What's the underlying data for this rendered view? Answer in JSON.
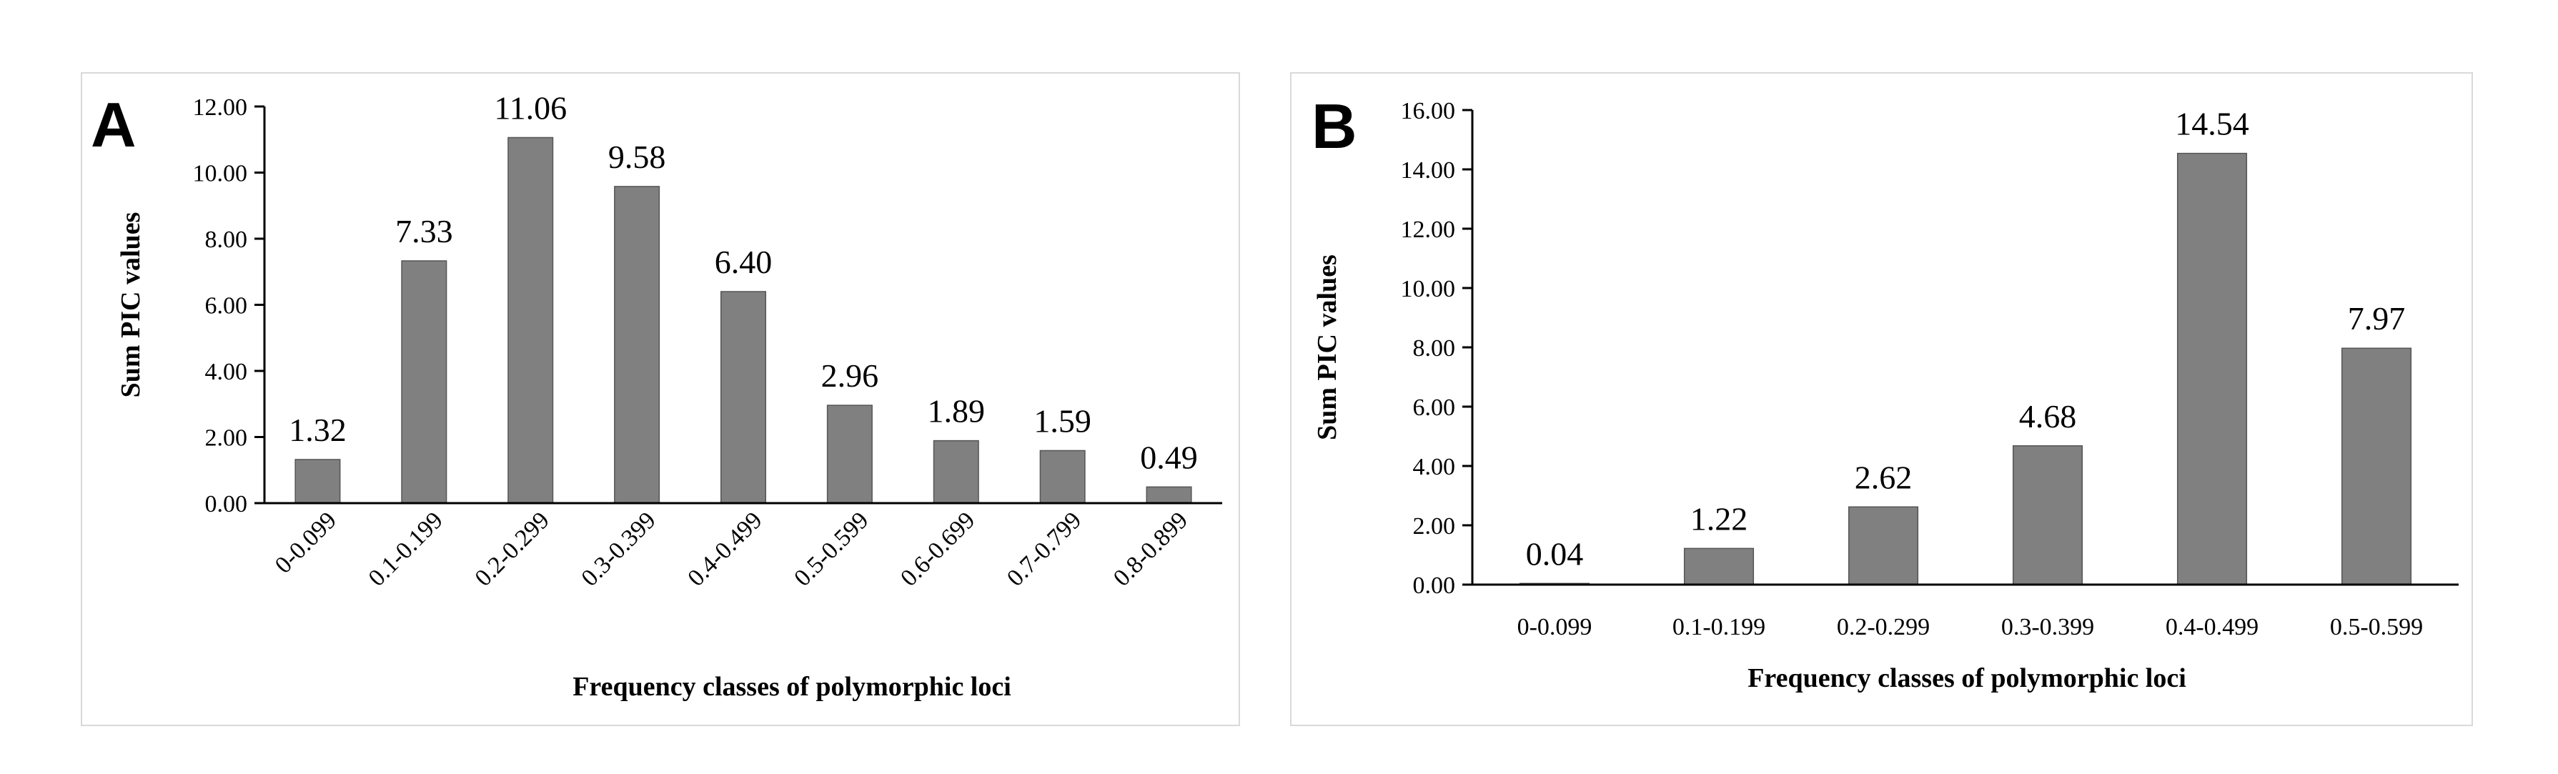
{
  "chart_data": [
    {
      "panel_label": "A",
      "type": "bar",
      "categories": [
        "0-0.099",
        "0.1-0.199",
        "0.2-0.299",
        "0.3-0.399",
        "0.4-0.499",
        "0.5-0.599",
        "0.6-0.699",
        "0.7-0.799",
        "0.8-0.899"
      ],
      "values": [
        1.32,
        7.33,
        11.06,
        9.58,
        6.4,
        2.96,
        1.89,
        1.59,
        0.49
      ],
      "value_labels": [
        "1.32",
        "7.33",
        "11.06",
        "9.58",
        "6.40",
        "2.96",
        "1.89",
        "1.59",
        "0.49"
      ],
      "xlabel": "Frequency classes of polymorphic loci",
      "ylabel": "Sum PIC values",
      "ylim": [
        0,
        12
      ],
      "ytick_labels": [
        "0.00",
        "2.00",
        "4.00",
        "6.00",
        "8.00",
        "10.00",
        "12.00"
      ],
      "x_tick_rotation": "rotated",
      "grid": false,
      "legend": "none",
      "bar_color": "#808080"
    },
    {
      "panel_label": "B",
      "type": "bar",
      "categories": [
        "0-0.099",
        "0.1-0.199",
        "0.2-0.299",
        "0.3-0.399",
        "0.4-0.499",
        "0.5-0.599"
      ],
      "values": [
        0.04,
        1.22,
        2.62,
        4.68,
        14.54,
        7.97
      ],
      "value_labels": [
        "0.04",
        "1.22",
        "2.62",
        "4.68",
        "14.54",
        "7.97"
      ],
      "xlabel": "Frequency classes of polymorphic loci",
      "ylabel": "Sum PIC values",
      "ylim": [
        0,
        16
      ],
      "ytick_labels": [
        "0.00",
        "2.00",
        "4.00",
        "6.00",
        "8.00",
        "10.00",
        "12.00",
        "14.00",
        "16.00"
      ],
      "x_tick_rotation": "horizontal",
      "grid": false,
      "legend": "none",
      "bar_color": "#808080"
    }
  ]
}
